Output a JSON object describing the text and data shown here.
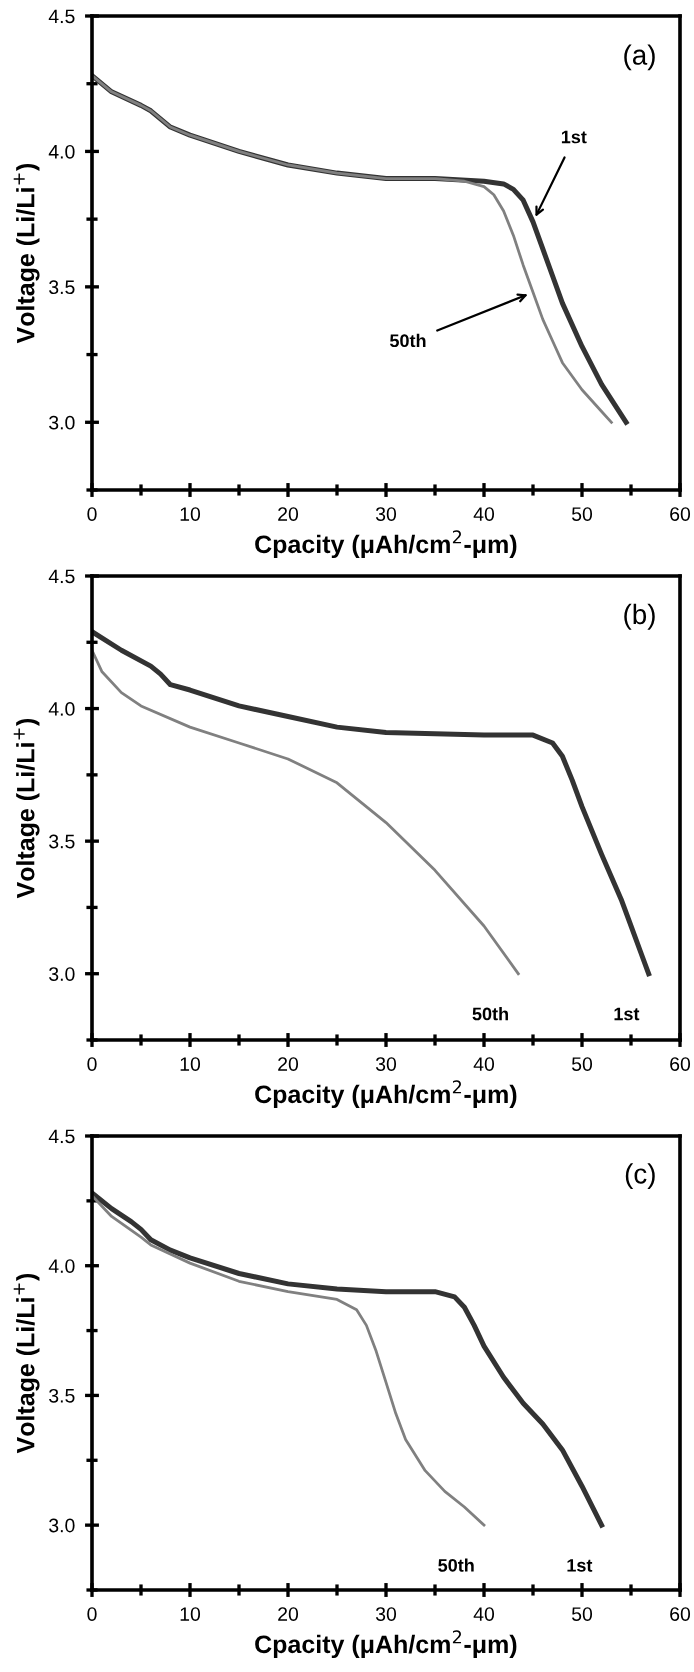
{
  "chart_data": [
    {
      "type": "line",
      "title": "(a)",
      "xlabel": "Cpacity (μAh/cm$^{2}$-μm)",
      "ylabel": "Voltage (Li/Li$^{+}$)",
      "xlim": [
        0,
        60
      ],
      "xticks": [
        0,
        10,
        20,
        30,
        40,
        50,
        60
      ],
      "ylim": [
        2.75,
        4.5
      ],
      "yticks": [
        {
          "value": 3.0,
          "label": "3.0"
        },
        {
          "value": 3.5,
          "label": "3.5"
        },
        {
          "value": 4.0,
          "label": "4.0"
        },
        {
          "value": 4.5,
          "label": "4.5"
        }
      ],
      "grid": false,
      "legend": false,
      "marker": "none",
      "line_style": "solid",
      "series": [
        {
          "color": "#333333",
          "x": [
            0,
            2,
            5,
            6,
            8,
            10,
            15,
            20,
            25,
            30,
            35,
            40,
            42,
            43,
            44,
            45,
            46,
            47,
            48,
            50,
            52,
            54.5
          ],
          "values": [
            4.28,
            4.22,
            4.17,
            4.15,
            4.09,
            4.06,
            4.0,
            3.95,
            3.92,
            3.9,
            3.9,
            3.89,
            3.88,
            3.86,
            3.82,
            3.74,
            3.64,
            3.54,
            3.44,
            3.28,
            3.14,
            3.0
          ]
        },
        {
          "color": "#808080",
          "x": [
            0,
            2,
            5,
            6,
            8,
            10,
            15,
            20,
            25,
            30,
            35,
            38,
            40,
            41,
            42,
            43,
            44,
            45,
            46,
            47,
            48,
            50,
            52,
            53
          ],
          "values": [
            4.28,
            4.22,
            4.17,
            4.15,
            4.09,
            4.06,
            4.0,
            3.95,
            3.92,
            3.9,
            3.9,
            3.89,
            3.87,
            3.84,
            3.78,
            3.69,
            3.58,
            3.48,
            3.38,
            3.3,
            3.22,
            3.12,
            3.04,
            3.0
          ]
        }
      ],
      "annotations": [
        {
          "text": "1st",
          "x": 45,
          "y": 3.74
        },
        {
          "text": "50th",
          "x": 45,
          "y": 3.48
        }
      ]
    },
    {
      "type": "line",
      "title": "(b)",
      "xlabel": "Cpacity (μAh/cm$^{2}$-μm)",
      "ylabel": "Voltage (Li/Li$^{+}$)",
      "xlim": [
        0,
        60
      ],
      "xticks": [
        0,
        10,
        20,
        30,
        40,
        50,
        60
      ],
      "ylim": [
        2.75,
        4.5
      ],
      "yticks": [
        {
          "value": 3.0,
          "label": "3.0"
        },
        {
          "value": 3.5,
          "label": "3.5"
        },
        {
          "value": 4.0,
          "label": "4.0"
        },
        {
          "value": 4.5,
          "label": "4.5"
        }
      ],
      "grid": false,
      "legend": false,
      "marker": "none",
      "line_style": "solid",
      "series": [
        {
          "color": "#333333",
          "x": [
            0,
            3,
            6,
            7,
            8,
            10,
            15,
            20,
            25,
            30,
            40,
            45,
            47,
            48,
            49,
            50,
            52,
            54,
            55,
            56,
            56.8
          ],
          "values": [
            4.29,
            4.22,
            4.16,
            4.13,
            4.09,
            4.07,
            4.01,
            3.97,
            3.93,
            3.91,
            3.9,
            3.9,
            3.87,
            3.82,
            3.73,
            3.63,
            3.45,
            3.28,
            3.18,
            3.08,
            3.0
          ]
        },
        {
          "color": "#808080",
          "x": [
            0,
            1,
            3,
            5,
            10,
            15,
            20,
            25,
            30,
            35,
            40,
            43.5
          ],
          "values": [
            4.22,
            4.14,
            4.06,
            4.01,
            3.93,
            3.87,
            3.81,
            3.72,
            3.57,
            3.39,
            3.18,
            3.0
          ]
        }
      ],
      "annotations": [
        {
          "text": "1st",
          "x": 56.8,
          "y": 3.0
        },
        {
          "text": "50th",
          "x": 43.5,
          "y": 3.0
        }
      ]
    },
    {
      "type": "line",
      "title": "(c)",
      "xlabel": "Cpacity (μAh/cm$^{2}$-μm)",
      "ylabel": "Voltage (Li/Li$^{+}$)",
      "xlim": [
        0,
        60
      ],
      "xticks": [
        0,
        10,
        20,
        30,
        40,
        50,
        60
      ],
      "ylim": [
        2.75,
        4.5
      ],
      "yticks": [
        {
          "value": 3.0,
          "label": "3.0"
        },
        {
          "value": 3.5,
          "label": "3.5"
        },
        {
          "value": 4.0,
          "label": "4.0"
        },
        {
          "value": 4.5,
          "label": "4.5"
        }
      ],
      "grid": false,
      "legend": false,
      "marker": "none",
      "line_style": "solid",
      "series": [
        {
          "color": "#333333",
          "x": [
            0,
            2,
            4,
            5,
            6,
            8,
            10,
            15,
            20,
            25,
            30,
            35,
            37,
            38,
            39,
            40,
            42,
            44,
            46,
            48,
            50,
            52
          ],
          "values": [
            4.28,
            4.22,
            4.17,
            4.14,
            4.1,
            4.06,
            4.03,
            3.97,
            3.93,
            3.91,
            3.9,
            3.9,
            3.88,
            3.84,
            3.77,
            3.69,
            3.57,
            3.47,
            3.39,
            3.29,
            3.15,
            3.0
          ]
        },
        {
          "color": "#808080",
          "x": [
            0,
            2,
            5,
            6,
            10,
            15,
            20,
            25,
            27,
            28,
            29,
            30,
            31,
            32,
            34,
            36,
            38,
            40
          ],
          "values": [
            4.27,
            4.19,
            4.11,
            4.08,
            4.01,
            3.94,
            3.9,
            3.87,
            3.83,
            3.77,
            3.67,
            3.55,
            3.43,
            3.33,
            3.21,
            3.13,
            3.07,
            3.0
          ]
        }
      ],
      "annotations": [
        {
          "text": "1st",
          "x": 52,
          "y": 3.0
        },
        {
          "text": "50th",
          "x": 40,
          "y": 3.0
        }
      ]
    }
  ]
}
